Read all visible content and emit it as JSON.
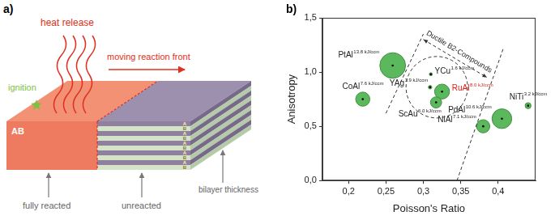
{
  "panel_a": {
    "panel_label": "a)",
    "heat_release": "heat release",
    "ignition": "ignition",
    "reaction_front": "moving reaction front",
    "reacted_layer": "AB",
    "layer_letters": [
      "A",
      "B",
      "A",
      "B",
      "A",
      "B",
      "A",
      "B",
      "A",
      "B"
    ],
    "fully_reacted": "fully reacted",
    "unreacted": "unreacted",
    "bilayer_thickness": "bilayer thickness"
  },
  "chart_data": {
    "type": "bubble",
    "panel_label": "b)",
    "x_label": "Poisson's Ratio",
    "y_label": "Anisotropy",
    "xlim": [
      0.165,
      0.45
    ],
    "ylim": [
      0,
      1.5
    ],
    "xticks": [
      {
        "value": 0.2,
        "label": "0,2"
      },
      {
        "value": 0.25,
        "label": "0,25"
      },
      {
        "value": 0.3,
        "label": "0,3"
      },
      {
        "value": 0.35,
        "label": "0,35"
      },
      {
        "value": 0.4,
        "label": "0,4"
      }
    ],
    "yticks": [
      {
        "value": 0,
        "label": "0,0"
      },
      {
        "value": 0.5,
        "label": "0,5"
      },
      {
        "value": 1,
        "label": "1,0"
      },
      {
        "value": 1.5,
        "label": "1,5"
      }
    ],
    "grid": false,
    "color": "#5cb85c",
    "points": [
      {
        "name": "PtAl",
        "x": 0.259,
        "y": 1.06,
        "energy": 13.8,
        "energy_label": "13.8 kJ/ccm"
      },
      {
        "name": "CoAl",
        "x": 0.219,
        "y": 0.75,
        "energy": 7.6,
        "energy_label": "7.6 kJ/ccm"
      },
      {
        "name": "YCu",
        "x": 0.31,
        "y": 0.98,
        "energy": 1.6,
        "energy_label": "1.6 kJ/ccm"
      },
      {
        "name": "YAg",
        "x": 0.309,
        "y": 0.86,
        "energy": 1.9,
        "energy_label": "1.9 kJ/ccm"
      },
      {
        "name": "RuAl",
        "x": 0.325,
        "y": 0.82,
        "energy": 8.0,
        "energy_label": "8.0 kJ/ccm",
        "color": "#e0201b"
      },
      {
        "name": "ScAu",
        "x": 0.317,
        "y": 0.72,
        "energy": 6.0,
        "energy_label": "6.0 kJ/ccm"
      },
      {
        "name": "NiAl",
        "x": 0.38,
        "y": 0.5,
        "energy": 7.1,
        "energy_label": "7.1 kJ/ccm"
      },
      {
        "name": "PdAl",
        "x": 0.405,
        "y": 0.57,
        "energy": 10.6,
        "energy_label": "10.6 kJ/ccm"
      },
      {
        "name": "NiTi",
        "x": 0.44,
        "y": 0.69,
        "energy": 3.2,
        "energy_label": "3.2 kJ/ccm"
      }
    ],
    "annotations": {
      "region": "Ductile B2-Compounds"
    }
  }
}
